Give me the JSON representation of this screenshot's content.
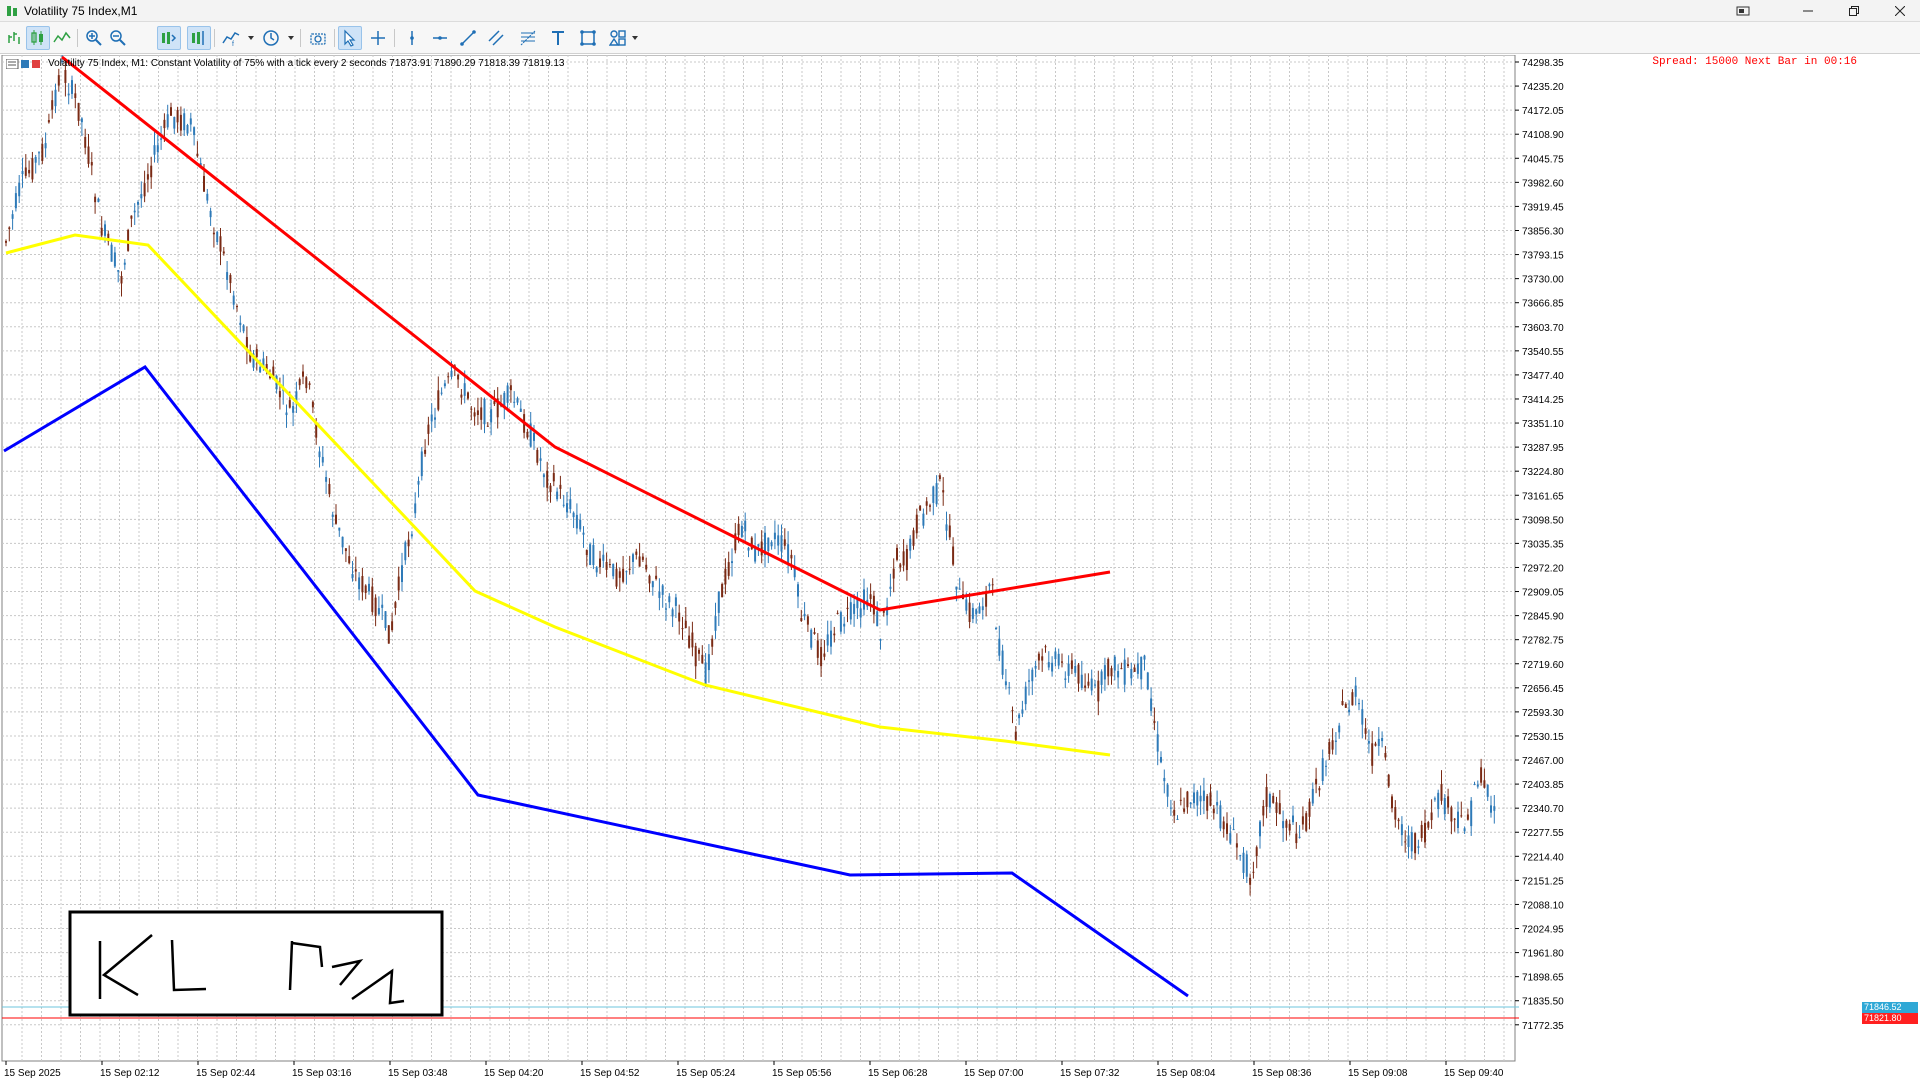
{
  "window": {
    "title": "Volatility 75 Index,M1"
  },
  "toolbar": {
    "icons": [
      "new-order-icon",
      "candlestick-icon",
      "line-chart-icon",
      "zoom-in-icon",
      "zoom-out-icon",
      "autoscroll-icon",
      "chart-shift-icon",
      "indicators-icon",
      "timeframe-icon",
      "screenshot-icon",
      "cursor-icon",
      "crosshair-icon",
      "vertical-line-icon",
      "horizontal-line-icon",
      "trendline-icon",
      "channel-icon",
      "fibonacci-icon",
      "text-icon",
      "shapes-icon",
      "objects-icon"
    ]
  },
  "chart": {
    "symbol_info": "Volatility 75 Index, M1:  Constant Volatility of 75% with a tick every 2 seconds  71873.91 71890.29 71818.39 71819.13",
    "spread_info": "Spread: 15000 Next Bar in 00:16",
    "bid_price": "71846.52",
    "ask_price": "71821.80",
    "price_labels": [
      "74298.35",
      "74235.20",
      "74172.05",
      "74108.90",
      "74045.75",
      "73982.60",
      "73919.45",
      "73856.30",
      "73793.15",
      "73730.00",
      "73666.85",
      "73603.70",
      "73540.55",
      "73477.40",
      "73414.25",
      "73351.10",
      "73287.95",
      "73224.80",
      "73161.65",
      "73098.50",
      "73035.35",
      "72972.20",
      "72909.05",
      "72845.90",
      "72782.75",
      "72719.60",
      "72656.45",
      "72593.30",
      "72530.15",
      "72467.00",
      "72403.85",
      "72340.70",
      "72277.55",
      "72214.40",
      "72151.25",
      "72088.10",
      "72024.95",
      "71961.80",
      "71898.65",
      "71835.50",
      "71772.35"
    ],
    "time_labels": [
      "15 Sep 2025",
      "15 Sep 02:12",
      "15 Sep 02:44",
      "15 Sep 03:16",
      "15 Sep 03:48",
      "15 Sep 04:20",
      "15 Sep 04:52",
      "15 Sep 05:24",
      "15 Sep 05:56",
      "15 Sep 06:28",
      "15 Sep 07:00",
      "15 Sep 07:32",
      "15 Sep 08:04",
      "15 Sep 08:36",
      "15 Sep 09:08",
      "15 Sep 09:40"
    ],
    "colors": {
      "bull": "#2e7ab8",
      "bear": "#7a2a14",
      "grid": "#c8c8c8",
      "upper_line": "#ff0000",
      "lower_line": "#0000ff",
      "mid_line": "#ffff00",
      "bid_line": "#6cc6dc",
      "ask_line": "#ff0000"
    },
    "annotation": {
      "handwriting": "KL PTM"
    }
  }
}
